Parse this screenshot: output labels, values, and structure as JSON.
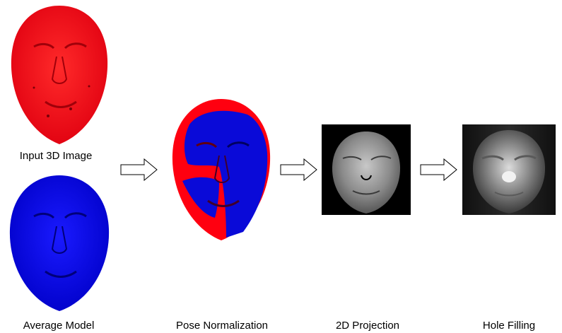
{
  "diagram": {
    "stages": [
      {
        "id": "input",
        "label": "Input 3D Image",
        "color": "#ff0000"
      },
      {
        "id": "average",
        "label": "Average Model",
        "color": "#0000ff"
      },
      {
        "id": "pose",
        "label": "Pose Normalization"
      },
      {
        "id": "projection",
        "label": "2D Projection"
      },
      {
        "id": "hole",
        "label": "Hole Filling"
      }
    ],
    "arrow_count": 3,
    "colors": {
      "input_face": "#ff0010",
      "average_face": "#0a0ad8",
      "projection_bg": "#000000",
      "filled_bg": "#141414"
    }
  }
}
